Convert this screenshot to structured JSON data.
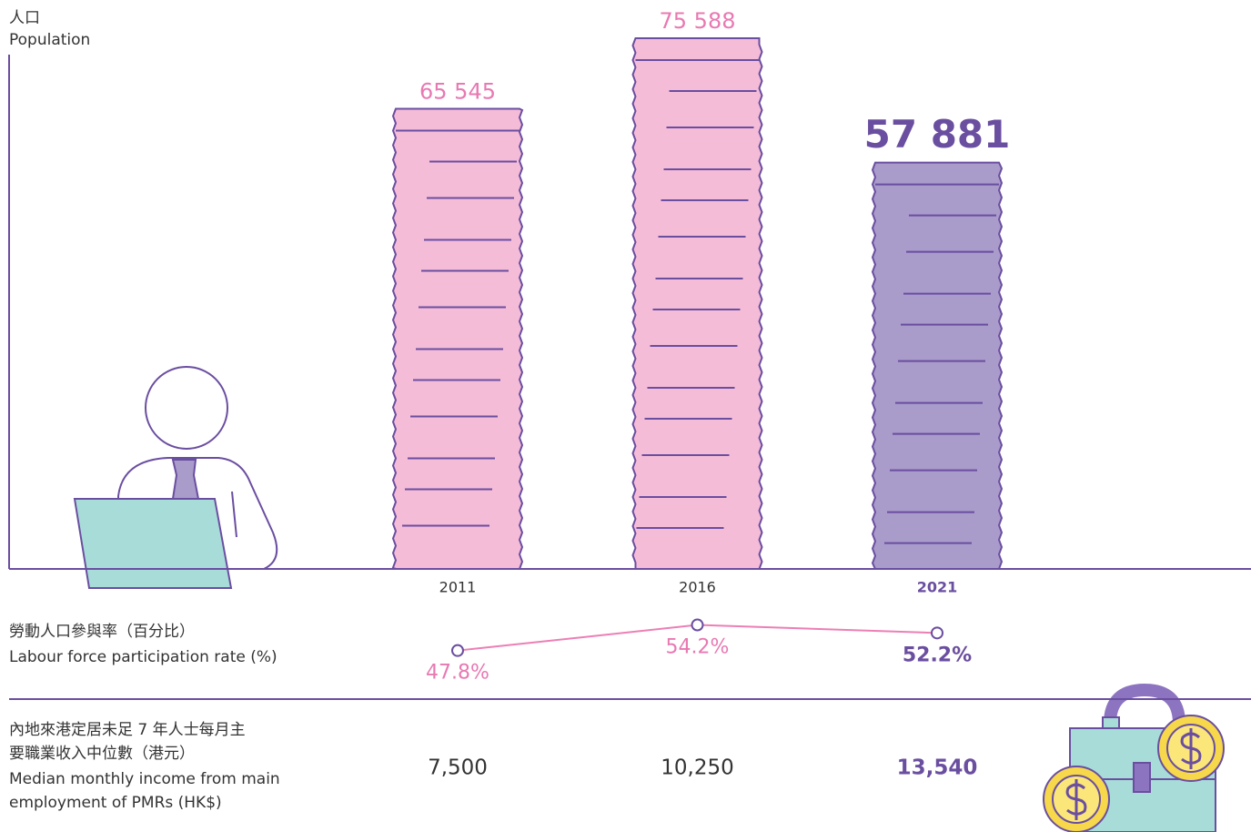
{
  "chart_data": [
    {
      "type": "bar",
      "ylabel": [
        "人口",
        "Population"
      ],
      "categories": [
        "2011",
        "2016",
        "2021"
      ],
      "values": [
        65545,
        75588,
        57881
      ],
      "value_labels": [
        "65 545",
        "75 588",
        "57 881"
      ],
      "colors": [
        "#f5bcd8",
        "#f5bcd8",
        "#a99bca"
      ],
      "ylim": [
        0,
        80000
      ]
    },
    {
      "type": "line",
      "title": [
        "勞動人口參與率（百分比）",
        "Labour force participation rate (%)"
      ],
      "values": [
        47.8,
        54.2,
        52.2
      ],
      "value_labels": [
        "47.8%",
        "54.2%",
        "52.2%"
      ],
      "color": "#ec7fb5",
      "ylim": [
        40,
        60
      ]
    },
    {
      "type": "table",
      "title": [
        "內地來港定居未足 7 年人士每月主",
        "要職業收入中位數（港元）",
        "Median monthly income from main",
        "employment of PMRs (HK$)"
      ],
      "values": [
        7500,
        10250,
        13540
      ],
      "value_labels": [
        "7,500",
        "10,250",
        "13,540"
      ]
    }
  ]
}
